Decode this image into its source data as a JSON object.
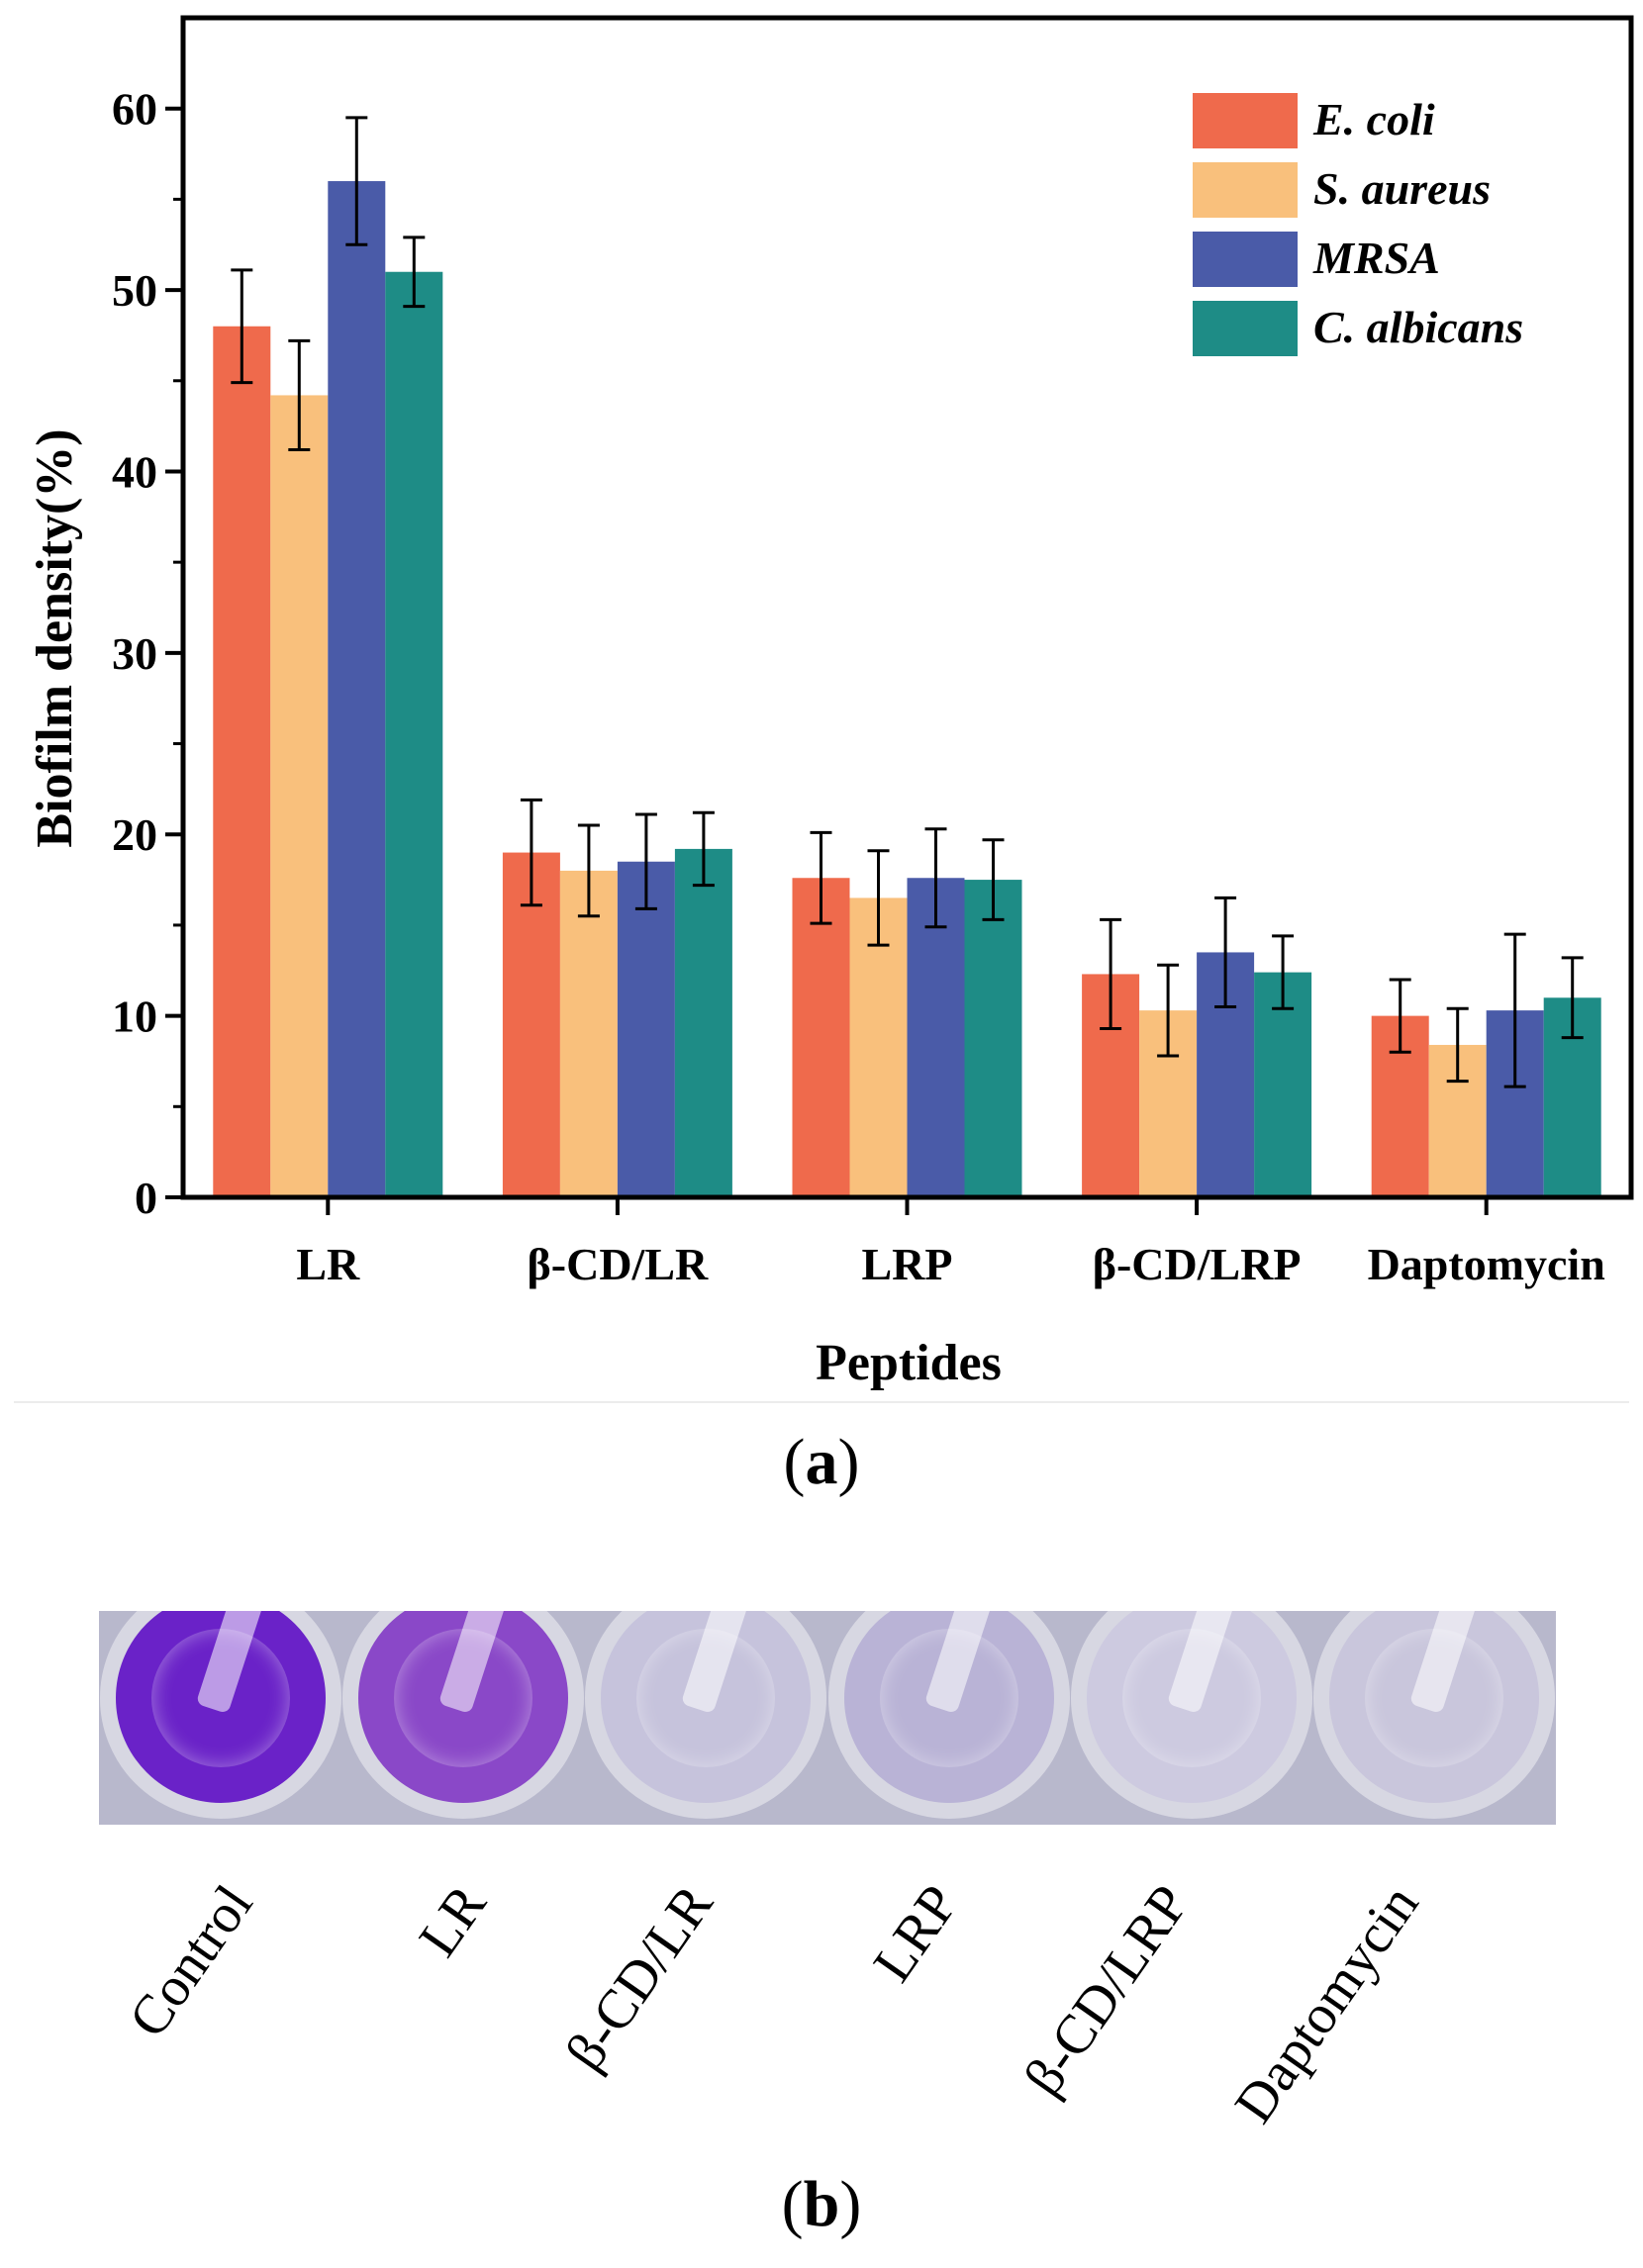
{
  "chart_data": {
    "type": "bar",
    "categories": [
      "LR",
      "β-CD/LR",
      "LRP",
      "β-CD/LRP",
      "Daptomycin"
    ],
    "series": [
      {
        "name": "E. coli",
        "color": "#ef6a4c",
        "values": [
          48.0,
          19.0,
          17.6,
          12.3,
          10.0
        ],
        "errors": [
          3.1,
          2.9,
          2.5,
          3.0,
          2.0
        ]
      },
      {
        "name": "S. aureus",
        "color": "#f9c07c",
        "values": [
          44.2,
          18.0,
          16.5,
          10.3,
          8.4
        ],
        "errors": [
          3.0,
          2.5,
          2.6,
          2.5,
          2.0
        ]
      },
      {
        "name": "MRSA",
        "color": "#4a5ba8",
        "values": [
          56.0,
          18.5,
          17.6,
          13.5,
          10.3
        ],
        "errors": [
          3.5,
          2.6,
          2.7,
          3.0,
          4.2
        ]
      },
      {
        "name": "C. albicans",
        "color": "#1e8c86",
        "values": [
          51.0,
          19.2,
          17.5,
          12.4,
          11.0
        ],
        "errors": [
          1.9,
          2.0,
          2.2,
          2.0,
          2.2
        ]
      }
    ],
    "xlabel": "Peptides",
    "ylabel": "Biofilm density(%)",
    "ylim": [
      0,
      65
    ],
    "yticks": [
      0,
      10,
      20,
      30,
      40,
      50,
      60
    ],
    "legend": "top-right"
  },
  "panel_labels": {
    "a": "a",
    "b": "b"
  },
  "photo": {
    "labels": [
      "Control",
      "LR",
      "β-CD/LR",
      "LRP",
      "β-CD/LRP",
      "Daptomycin"
    ],
    "well_colors": [
      "#6a22c8",
      "#8a48c8",
      "#c6c3dc",
      "#b9b3d6",
      "#cdcae0",
      "#c9c6dc"
    ]
  }
}
